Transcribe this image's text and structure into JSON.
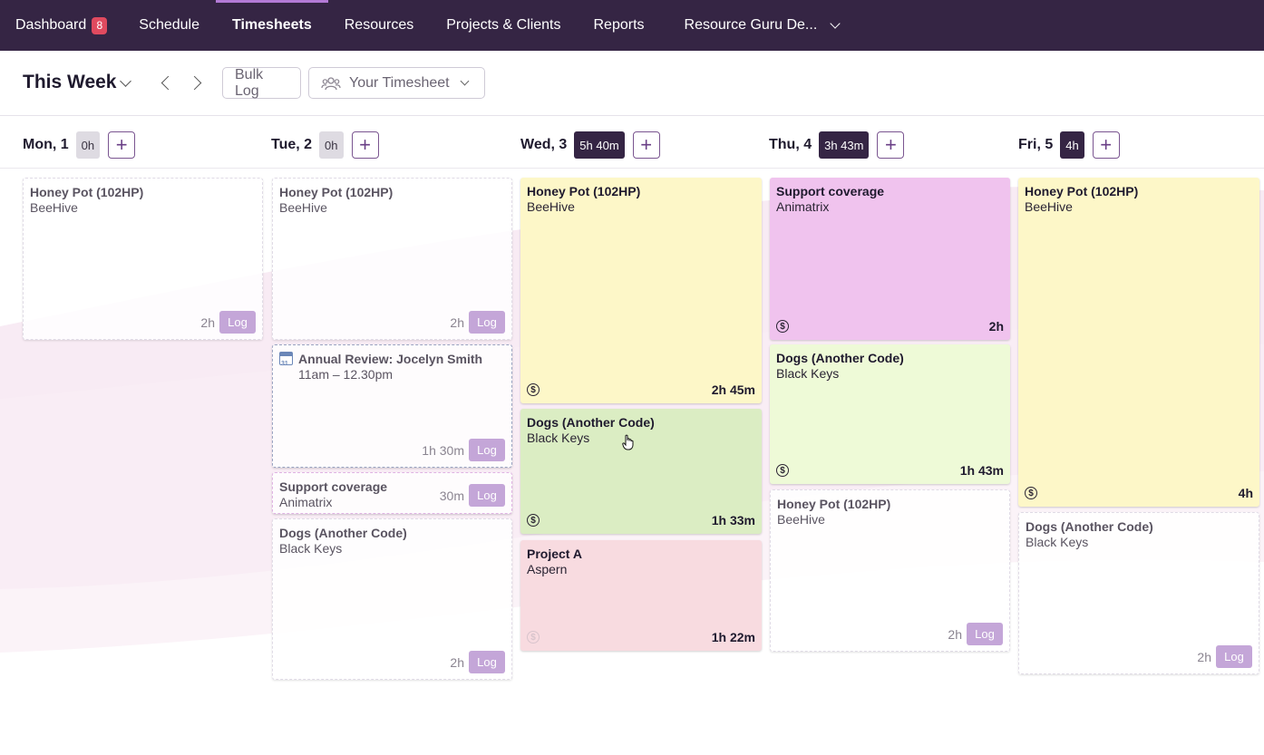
{
  "nav": {
    "items": [
      {
        "label": "Dashboard",
        "badge": "8"
      },
      {
        "label": "Schedule"
      },
      {
        "label": "Timesheets",
        "active": true
      },
      {
        "label": "Resources"
      },
      {
        "label": "Projects & Clients"
      },
      {
        "label": "Reports"
      }
    ],
    "account": "Resource Guru De..."
  },
  "toolbar": {
    "week": "This Week",
    "bulk_log": "Bulk Log",
    "your_timesheet": "Your Timesheet"
  },
  "days": [
    {
      "label": "Mon, 1",
      "total": "0h"
    },
    {
      "label": "Tue, 2",
      "total": "0h"
    },
    {
      "label": "Wed, 3",
      "total": "5h 40m"
    },
    {
      "label": "Thu, 4",
      "total": "3h 43m"
    },
    {
      "label": "Fri, 5",
      "total": "4h"
    }
  ],
  "cards": [
    {
      "title": "Honey Pot (102HP)",
      "sub": "BeeHive",
      "duration": "2h",
      "log": "Log"
    },
    {
      "title": "Honey Pot (102HP)",
      "sub": "BeeHive",
      "duration": "2h",
      "log": "Log"
    },
    {
      "title": "Annual Review: Jocelyn Smith",
      "sub": "11am – 12.30pm",
      "duration": "1h 30m",
      "log": "Log"
    },
    {
      "title": "Support coverage",
      "sub": "Animatrix",
      "duration": "30m",
      "log": "Log"
    },
    {
      "title": "Dogs (Another Code)",
      "sub": "Black Keys",
      "duration": "2h",
      "log": "Log"
    },
    {
      "title": "Honey Pot (102HP)",
      "sub": "BeeHive",
      "duration": "2h 45m"
    },
    {
      "title": "Dogs (Another Code)",
      "sub": "Black Keys",
      "duration": "1h 33m"
    },
    {
      "title": "Project A",
      "sub": "Aspern",
      "duration": "1h 22m"
    },
    {
      "title": "Support coverage",
      "sub": "Animatrix",
      "duration": "2h"
    },
    {
      "title": "Dogs (Another Code)",
      "sub": "Black Keys",
      "duration": "1h 43m"
    },
    {
      "title": "Honey Pot (102HP)",
      "sub": "BeeHive",
      "duration": "2h",
      "log": "Log"
    },
    {
      "title": "Honey Pot (102HP)",
      "sub": "BeeHive",
      "duration": "4h"
    },
    {
      "title": "Dogs (Another Code)",
      "sub": "Black Keys",
      "duration": "2h",
      "log": "Log"
    }
  ],
  "icons": {
    "billable": "$"
  },
  "colors": {
    "nav_bg": "#352544",
    "badge": "#e04a5f",
    "log_button": "#c4a6d8",
    "yellow_card": "#fdf7c8",
    "green_card": "#dbedc3",
    "pink_card": "#f8dbe0",
    "magenta_card": "#f0c3ee",
    "lime_card": "#eefad7"
  }
}
